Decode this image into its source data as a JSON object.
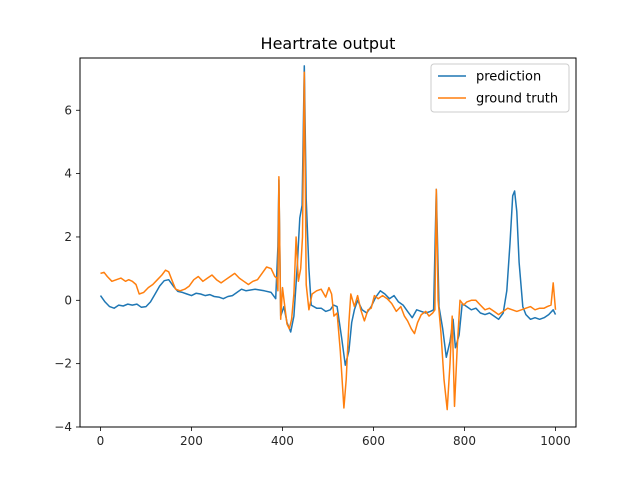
{
  "chart_data": {
    "type": "line",
    "title": "Heartrate output",
    "xlabel": "",
    "ylabel": "",
    "xlim": [
      -45,
      1045
    ],
    "ylim": [
      -4,
      7.65
    ],
    "xticks": [
      0,
      200,
      400,
      600,
      800,
      1000
    ],
    "yticks": [
      -4,
      -2,
      0,
      2,
      4,
      6
    ],
    "grid": false,
    "legend": "top-right",
    "series": [
      {
        "name": "prediction",
        "color": "#1f77b4",
        "points": [
          [
            0,
            0.15
          ],
          [
            10,
            -0.05
          ],
          [
            20,
            -0.2
          ],
          [
            30,
            -0.25
          ],
          [
            40,
            -0.15
          ],
          [
            50,
            -0.18
          ],
          [
            60,
            -0.12
          ],
          [
            70,
            -0.15
          ],
          [
            80,
            -0.12
          ],
          [
            90,
            -0.22
          ],
          [
            100,
            -0.2
          ],
          [
            110,
            -0.05
          ],
          [
            120,
            0.2
          ],
          [
            130,
            0.45
          ],
          [
            140,
            0.62
          ],
          [
            150,
            0.65
          ],
          [
            160,
            0.45
          ],
          [
            170,
            0.28
          ],
          [
            180,
            0.25
          ],
          [
            190,
            0.2
          ],
          [
            200,
            0.15
          ],
          [
            210,
            0.22
          ],
          [
            220,
            0.2
          ],
          [
            230,
            0.15
          ],
          [
            240,
            0.18
          ],
          [
            250,
            0.12
          ],
          [
            260,
            0.1
          ],
          [
            270,
            0.05
          ],
          [
            280,
            0.12
          ],
          [
            290,
            0.15
          ],
          [
            300,
            0.25
          ],
          [
            310,
            0.35
          ],
          [
            320,
            0.3
          ],
          [
            340,
            0.35
          ],
          [
            360,
            0.3
          ],
          [
            375,
            0.25
          ],
          [
            385,
            0.05
          ],
          [
            390,
            1.7
          ],
          [
            392,
            3.8
          ],
          [
            396,
            -0.5
          ],
          [
            403,
            -0.2
          ],
          [
            410,
            -0.7
          ],
          [
            418,
            -1.0
          ],
          [
            425,
            -0.5
          ],
          [
            432,
            1.0
          ],
          [
            438,
            2.6
          ],
          [
            443,
            3.0
          ],
          [
            448,
            7.4
          ],
          [
            452,
            3.2
          ],
          [
            458,
            1.0
          ],
          [
            463,
            -0.15
          ],
          [
            475,
            -0.25
          ],
          [
            485,
            -0.25
          ],
          [
            495,
            -0.35
          ],
          [
            505,
            -0.3
          ],
          [
            512,
            -0.15
          ],
          [
            520,
            -0.2
          ],
          [
            530,
            -1.2
          ],
          [
            538,
            -2.05
          ],
          [
            546,
            -1.6
          ],
          [
            552,
            -0.7
          ],
          [
            558,
            -0.3
          ],
          [
            565,
            0.0
          ],
          [
            575,
            -0.3
          ],
          [
            585,
            -0.4
          ],
          [
            595,
            -0.2
          ],
          [
            605,
            0.1
          ],
          [
            615,
            0.3
          ],
          [
            625,
            0.2
          ],
          [
            635,
            0.05
          ],
          [
            645,
            0.15
          ],
          [
            655,
            -0.05
          ],
          [
            665,
            -0.15
          ],
          [
            675,
            -0.35
          ],
          [
            685,
            -0.55
          ],
          [
            695,
            -0.3
          ],
          [
            705,
            -0.35
          ],
          [
            715,
            -0.4
          ],
          [
            725,
            -0.35
          ],
          [
            732,
            -0.3
          ],
          [
            738,
            3.5
          ],
          [
            744,
            -0.2
          ],
          [
            752,
            -0.9
          ],
          [
            760,
            -1.8
          ],
          [
            768,
            -1.3
          ],
          [
            775,
            -0.6
          ],
          [
            780,
            -1.5
          ],
          [
            788,
            -1.1
          ],
          [
            795,
            -0.1
          ],
          [
            805,
            -0.2
          ],
          [
            815,
            -0.3
          ],
          [
            825,
            -0.25
          ],
          [
            835,
            -0.4
          ],
          [
            845,
            -0.45
          ],
          [
            855,
            -0.4
          ],
          [
            865,
            -0.5
          ],
          [
            875,
            -0.6
          ],
          [
            885,
            -0.4
          ],
          [
            893,
            0.3
          ],
          [
            900,
            1.8
          ],
          [
            906,
            3.3
          ],
          [
            910,
            3.45
          ],
          [
            915,
            2.8
          ],
          [
            920,
            1.2
          ],
          [
            928,
            -0.2
          ],
          [
            935,
            -0.45
          ],
          [
            945,
            -0.6
          ],
          [
            955,
            -0.55
          ],
          [
            965,
            -0.6
          ],
          [
            975,
            -0.55
          ],
          [
            985,
            -0.45
          ],
          [
            995,
            -0.3
          ],
          [
            1000,
            -0.45
          ]
        ]
      },
      {
        "name": "ground truth",
        "color": "#ff7f0e",
        "points": [
          [
            0,
            0.85
          ],
          [
            8,
            0.88
          ],
          [
            15,
            0.75
          ],
          [
            25,
            0.6
          ],
          [
            35,
            0.65
          ],
          [
            45,
            0.7
          ],
          [
            55,
            0.6
          ],
          [
            62,
            0.65
          ],
          [
            70,
            0.6
          ],
          [
            78,
            0.5
          ],
          [
            85,
            0.2
          ],
          [
            95,
            0.25
          ],
          [
            105,
            0.4
          ],
          [
            115,
            0.5
          ],
          [
            125,
            0.65
          ],
          [
            135,
            0.8
          ],
          [
            143,
            0.95
          ],
          [
            150,
            0.9
          ],
          [
            158,
            0.6
          ],
          [
            165,
            0.35
          ],
          [
            175,
            0.3
          ],
          [
            185,
            0.35
          ],
          [
            195,
            0.45
          ],
          [
            205,
            0.65
          ],
          [
            215,
            0.75
          ],
          [
            225,
            0.6
          ],
          [
            235,
            0.7
          ],
          [
            245,
            0.8
          ],
          [
            255,
            0.65
          ],
          [
            265,
            0.55
          ],
          [
            275,
            0.65
          ],
          [
            285,
            0.75
          ],
          [
            295,
            0.85
          ],
          [
            305,
            0.7
          ],
          [
            315,
            0.6
          ],
          [
            325,
            0.5
          ],
          [
            335,
            0.6
          ],
          [
            345,
            0.65
          ],
          [
            355,
            0.85
          ],
          [
            365,
            1.05
          ],
          [
            375,
            1.0
          ],
          [
            383,
            0.75
          ],
          [
            388,
            0.7
          ],
          [
            390,
            0.3
          ],
          [
            392,
            3.9
          ],
          [
            396,
            -0.6
          ],
          [
            400,
            0.4
          ],
          [
            405,
            -0.2
          ],
          [
            410,
            -0.75
          ],
          [
            415,
            -0.9
          ],
          [
            420,
            -0.6
          ],
          [
            425,
            0.2
          ],
          [
            430,
            2.0
          ],
          [
            435,
            0.6
          ],
          [
            440,
            1.0
          ],
          [
            444,
            2.0
          ],
          [
            448,
            7.2
          ],
          [
            452,
            0.5
          ],
          [
            458,
            -0.3
          ],
          [
            465,
            0.2
          ],
          [
            475,
            0.3
          ],
          [
            485,
            0.35
          ],
          [
            495,
            0.1
          ],
          [
            502,
            0.4
          ],
          [
            508,
            0.2
          ],
          [
            513,
            -0.5
          ],
          [
            520,
            -0.4
          ],
          [
            527,
            -1.6
          ],
          [
            535,
            -3.4
          ],
          [
            540,
            -2.5
          ],
          [
            546,
            -0.7
          ],
          [
            550,
            0.2
          ],
          [
            558,
            -0.2
          ],
          [
            565,
            0.15
          ],
          [
            572,
            -0.3
          ],
          [
            580,
            -0.65
          ],
          [
            588,
            -0.3
          ],
          [
            595,
            -0.25
          ],
          [
            602,
            0.15
          ],
          [
            610,
            0.05
          ],
          [
            620,
            0.15
          ],
          [
            630,
            0.05
          ],
          [
            640,
            -0.1
          ],
          [
            650,
            -0.35
          ],
          [
            660,
            -0.2
          ],
          [
            668,
            -0.5
          ],
          [
            675,
            -0.65
          ],
          [
            683,
            -0.9
          ],
          [
            690,
            -1.05
          ],
          [
            697,
            -0.7
          ],
          [
            705,
            -0.45
          ],
          [
            715,
            -0.35
          ],
          [
            722,
            -0.5
          ],
          [
            730,
            -0.4
          ],
          [
            735,
            -0.3
          ],
          [
            738,
            3.5
          ],
          [
            742,
            0.0
          ],
          [
            748,
            -1.0
          ],
          [
            755,
            -2.5
          ],
          [
            762,
            -3.45
          ],
          [
            768,
            -2.0
          ],
          [
            773,
            -0.5
          ],
          [
            778,
            -3.35
          ],
          [
            784,
            -1.5
          ],
          [
            790,
            0.0
          ],
          [
            798,
            -0.15
          ],
          [
            805,
            -0.05
          ],
          [
            815,
            0.0
          ],
          [
            825,
            0.0
          ],
          [
            835,
            -0.15
          ],
          [
            845,
            -0.3
          ],
          [
            855,
            -0.25
          ],
          [
            865,
            -0.35
          ],
          [
            875,
            -0.45
          ],
          [
            885,
            -0.35
          ],
          [
            895,
            -0.25
          ],
          [
            905,
            -0.3
          ],
          [
            915,
            -0.35
          ],
          [
            925,
            -0.3
          ],
          [
            935,
            -0.25
          ],
          [
            945,
            -0.2
          ],
          [
            955,
            -0.3
          ],
          [
            965,
            -0.25
          ],
          [
            975,
            -0.25
          ],
          [
            982,
            -0.2
          ],
          [
            990,
            -0.15
          ],
          [
            995,
            0.55
          ],
          [
            1000,
            -0.3
          ]
        ]
      }
    ]
  }
}
